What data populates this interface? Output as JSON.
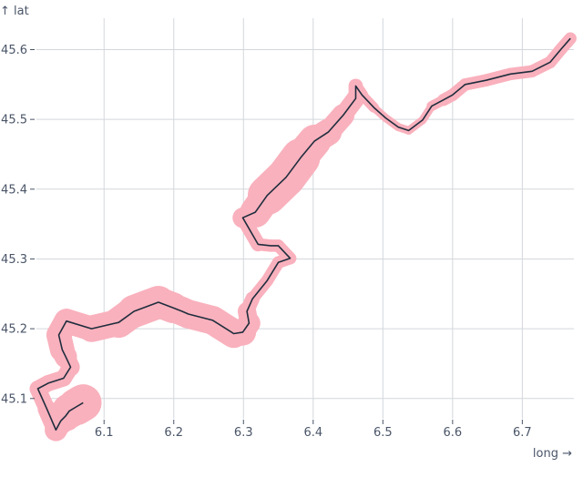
{
  "chart_data": {
    "type": "line",
    "xlabel": "long →",
    "ylabel": "↑ lat",
    "xlim": [
      6.003,
      6.774
    ],
    "ylim": [
      45.071,
      45.645
    ],
    "xticks": [
      "6.1",
      "6.2",
      "6.3",
      "6.4",
      "6.5",
      "6.6",
      "6.7"
    ],
    "yticks": [
      "45.1",
      "45.2",
      "45.3",
      "45.4",
      "45.5",
      "45.6"
    ],
    "grid": true,
    "colors": {
      "line": "#1f2d3d",
      "halo": "#f9b1bd",
      "grid": "#d3d7dc"
    },
    "series": [
      {
        "x": [
          6.07,
          6.06,
          6.05,
          6.045,
          6.038,
          6.031,
          6.018,
          6.005,
          6.02,
          6.042,
          6.052,
          6.045,
          6.04,
          6.035,
          6.046,
          6.082,
          6.121,
          6.143,
          6.178,
          6.199,
          6.212,
          6.221,
          6.256,
          6.286,
          6.299,
          6.308,
          6.305,
          6.313,
          6.334,
          6.35,
          6.367,
          6.35,
          6.339,
          6.321,
          6.299,
          6.317,
          6.334,
          6.361,
          6.382,
          6.402,
          6.422,
          6.443,
          6.461,
          6.461,
          6.47,
          6.487,
          6.504,
          6.522,
          6.537,
          6.557,
          6.57,
          6.587,
          6.6,
          6.618,
          6.648,
          6.683,
          6.714,
          6.74,
          6.755,
          6.769
        ],
        "y": [
          45.094,
          45.088,
          45.082,
          45.075,
          45.068,
          45.055,
          45.085,
          45.114,
          45.122,
          45.129,
          45.145,
          45.16,
          45.17,
          45.191,
          45.211,
          45.2,
          45.209,
          45.225,
          45.238,
          45.23,
          45.225,
          45.221,
          45.212,
          45.193,
          45.195,
          45.208,
          45.225,
          45.243,
          45.269,
          45.295,
          45.301,
          45.319,
          45.319,
          45.321,
          45.359,
          45.367,
          45.391,
          45.417,
          45.445,
          45.469,
          45.482,
          45.506,
          45.53,
          45.548,
          45.535,
          45.517,
          45.502,
          45.489,
          45.484,
          45.499,
          45.519,
          45.528,
          45.535,
          45.55,
          45.556,
          45.565,
          45.569,
          45.582,
          45.6,
          45.616
        ],
        "z": [
          9,
          9,
          8,
          7,
          6,
          5,
          4,
          4,
          4,
          4,
          4,
          5,
          6,
          6,
          6,
          6,
          7,
          8,
          8,
          7,
          7,
          7,
          7,
          7,
          6,
          5,
          4,
          3,
          3,
          3,
          3,
          3,
          3,
          3,
          4,
          6,
          9,
          10,
          9,
          7,
          6,
          5,
          4,
          3,
          3,
          2,
          2,
          2,
          2,
          2,
          2,
          3,
          3,
          3,
          3,
          3,
          3,
          3,
          3,
          3
        ]
      }
    ]
  }
}
